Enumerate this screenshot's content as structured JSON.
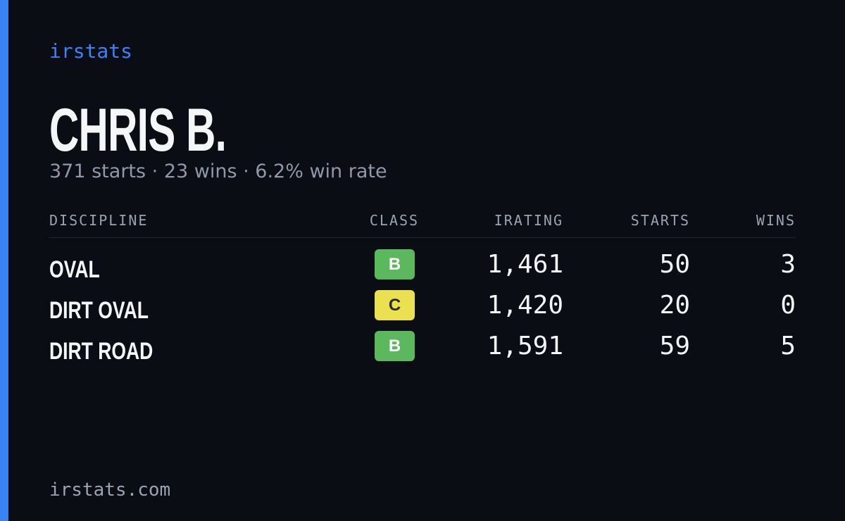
{
  "brand": "irstats",
  "name": "CHRIS B.",
  "summary": "371 starts · 23 wins · 6.2% win rate",
  "table": {
    "headers": [
      "DISCIPLINE",
      "CLASS",
      "IRATING",
      "STARTS",
      "WINS"
    ],
    "rows": [
      {
        "discipline": "OVAL",
        "class": "B",
        "class_color": "#5cb85c",
        "irating": "1,461",
        "starts": "50",
        "wins": "3"
      },
      {
        "discipline": "DIRT OVAL",
        "class": "C",
        "class_color": "#ebe04f",
        "irating": "1,420",
        "starts": "20",
        "wins": "0"
      },
      {
        "discipline": "DIRT ROAD",
        "class": "B",
        "class_color": "#5cb85c",
        "irating": "1,591",
        "starts": "59",
        "wins": "5"
      }
    ]
  },
  "footer": "irstats.com"
}
